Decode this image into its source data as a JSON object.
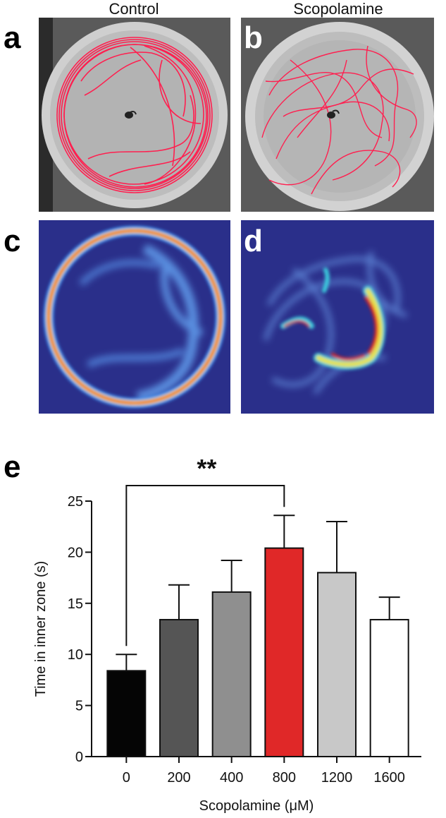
{
  "columns": {
    "left": "Control",
    "right": "Scopolamine"
  },
  "panels": {
    "a": "a",
    "b": "b",
    "c": "c",
    "d": "d",
    "e": "e"
  },
  "colors": {
    "heat_bg": "#2a2f8a",
    "track": "#ff1f4f",
    "highlight_bar": "#e02828"
  },
  "chart_data": {
    "type": "bar",
    "categories": [
      "0",
      "200",
      "400",
      "800",
      "1200",
      "1600"
    ],
    "values": [
      8.4,
      13.4,
      16.1,
      20.4,
      18.0,
      13.4
    ],
    "errors": [
      1.6,
      3.4,
      3.1,
      3.2,
      5.0,
      2.2
    ],
    "bar_colors": [
      "#050505",
      "#555555",
      "#8f8f8f",
      "#e02828",
      "#c8c8c8",
      "#ffffff"
    ],
    "ylabel": "Time in inner zone (s)",
    "xlabel": "Scopolamine (μM)",
    "ylim": [
      0,
      25
    ],
    "yticks": [
      0,
      5,
      10,
      15,
      20,
      25
    ],
    "significance": {
      "from": "0",
      "to": "800",
      "label": "**"
    }
  }
}
